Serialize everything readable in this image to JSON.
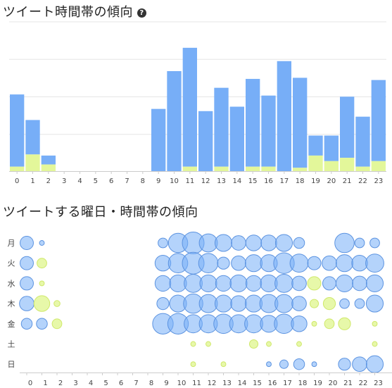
{
  "charts": {
    "hourly_title": "ツイート時間帯の傾向",
    "help_icon_glyph": "?",
    "weekday_title": "ツイートする曜日・時間帯の傾向"
  },
  "colors": {
    "blue": "#77aef7",
    "blue_stroke": "#5c93e0",
    "green": "#e3f79a",
    "green_stroke": "#cfe86a",
    "axis": "#cccccc",
    "grid": "#e6e6e6"
  },
  "chart_data": [
    {
      "type": "bar",
      "stacked": true,
      "categories": [
        "0",
        "1",
        "2",
        "3",
        "4",
        "5",
        "6",
        "7",
        "8",
        "9",
        "10",
        "11",
        "12",
        "13",
        "14",
        "15",
        "16",
        "17",
        "18",
        "19",
        "20",
        "21",
        "22",
        "23"
      ],
      "series": [
        {
          "values": [
            6.5,
            3.1,
            0.8,
            0,
            0,
            0,
            0,
            0,
            0,
            5.6,
            9.0,
            10.7,
            5.4,
            7.1,
            5.8,
            7.9,
            6.4,
            9.9,
            8.1,
            1.8,
            2.3,
            5.5,
            4.5,
            7.3
          ]
        },
        {
          "values": [
            0.4,
            1.5,
            0.6,
            0,
            0,
            0,
            0,
            0,
            0,
            0,
            0,
            0.4,
            0,
            0.4,
            0,
            0.4,
            0.4,
            0,
            0.3,
            1.4,
            0.9,
            1.2,
            0.4,
            0.9
          ]
        }
      ],
      "ylim": [
        0,
        13.5
      ],
      "grid": true
    },
    {
      "type": "scatter",
      "x_categories": [
        "0",
        "1",
        "2",
        "3",
        "4",
        "5",
        "6",
        "7",
        "8",
        "9",
        "10",
        "11",
        "12",
        "13",
        "14",
        "15",
        "16",
        "17",
        "18",
        "19",
        "20",
        "21",
        "22",
        "23"
      ],
      "y_categories": [
        "月",
        "火",
        "水",
        "木",
        "金",
        "土",
        "日"
      ],
      "size_scale_max": 18,
      "points": [
        {
          "x": 0,
          "y": "月",
          "size": 11,
          "color": "blue"
        },
        {
          "x": 1,
          "y": "月",
          "size": 4,
          "color": "blue"
        },
        {
          "x": 9,
          "y": "月",
          "size": 8,
          "color": "blue"
        },
        {
          "x": 10,
          "y": "月",
          "size": 16,
          "color": "blue"
        },
        {
          "x": 11,
          "y": "月",
          "size": 18,
          "color": "blue"
        },
        {
          "x": 12,
          "y": "月",
          "size": 15,
          "color": "blue"
        },
        {
          "x": 13,
          "y": "月",
          "size": 14,
          "color": "blue"
        },
        {
          "x": 14,
          "y": "月",
          "size": 12,
          "color": "blue"
        },
        {
          "x": 15,
          "y": "月",
          "size": 13,
          "color": "blue"
        },
        {
          "x": 16,
          "y": "月",
          "size": 13,
          "color": "blue"
        },
        {
          "x": 17,
          "y": "月",
          "size": 14,
          "color": "blue"
        },
        {
          "x": 18,
          "y": "月",
          "size": 9,
          "color": "blue"
        },
        {
          "x": 21,
          "y": "月",
          "size": 16,
          "color": "blue"
        },
        {
          "x": 22,
          "y": "月",
          "size": 8,
          "color": "blue"
        },
        {
          "x": 23,
          "y": "月",
          "size": 8,
          "color": "blue"
        },
        {
          "x": 0,
          "y": "火",
          "size": 11,
          "color": "blue"
        },
        {
          "x": 1,
          "y": "火",
          "size": 8,
          "color": "green"
        },
        {
          "x": 9,
          "y": "火",
          "size": 13,
          "color": "blue"
        },
        {
          "x": 10,
          "y": "火",
          "size": 16,
          "color": "blue"
        },
        {
          "x": 11,
          "y": "火",
          "size": 18,
          "color": "blue"
        },
        {
          "x": 12,
          "y": "火",
          "size": 16,
          "color": "blue"
        },
        {
          "x": 13,
          "y": "火",
          "size": 10,
          "color": "blue"
        },
        {
          "x": 14,
          "y": "火",
          "size": 12,
          "color": "blue"
        },
        {
          "x": 15,
          "y": "火",
          "size": 14,
          "color": "blue"
        },
        {
          "x": 16,
          "y": "火",
          "size": 14,
          "color": "blue"
        },
        {
          "x": 17,
          "y": "火",
          "size": 17,
          "color": "blue"
        },
        {
          "x": 18,
          "y": "火",
          "size": 15,
          "color": "blue"
        },
        {
          "x": 19,
          "y": "火",
          "size": 11,
          "color": "blue"
        },
        {
          "x": 20,
          "y": "火",
          "size": 12,
          "color": "blue"
        },
        {
          "x": 21,
          "y": "火",
          "size": 14,
          "color": "blue"
        },
        {
          "x": 22,
          "y": "火",
          "size": 13,
          "color": "blue"
        },
        {
          "x": 23,
          "y": "火",
          "size": 15,
          "color": "blue"
        },
        {
          "x": 0,
          "y": "水",
          "size": 11,
          "color": "blue"
        },
        {
          "x": 1,
          "y": "水",
          "size": 4,
          "color": "green"
        },
        {
          "x": 9,
          "y": "水",
          "size": 13,
          "color": "blue"
        },
        {
          "x": 10,
          "y": "水",
          "size": 14,
          "color": "blue"
        },
        {
          "x": 11,
          "y": "水",
          "size": 15,
          "color": "blue"
        },
        {
          "x": 12,
          "y": "水",
          "size": 14,
          "color": "blue"
        },
        {
          "x": 13,
          "y": "水",
          "size": 13,
          "color": "blue"
        },
        {
          "x": 14,
          "y": "水",
          "size": 14,
          "color": "blue"
        },
        {
          "x": 15,
          "y": "水",
          "size": 13,
          "color": "blue"
        },
        {
          "x": 16,
          "y": "水",
          "size": 14,
          "color": "blue"
        },
        {
          "x": 17,
          "y": "水",
          "size": 15,
          "color": "blue"
        },
        {
          "x": 18,
          "y": "水",
          "size": 12,
          "color": "blue"
        },
        {
          "x": 19,
          "y": "水",
          "size": 11,
          "color": "green"
        },
        {
          "x": 20,
          "y": "水",
          "size": 11,
          "color": "blue"
        },
        {
          "x": 21,
          "y": "水",
          "size": 14,
          "color": "blue"
        },
        {
          "x": 22,
          "y": "水",
          "size": 12,
          "color": "blue"
        },
        {
          "x": 23,
          "y": "水",
          "size": 14,
          "color": "blue"
        },
        {
          "x": 0,
          "y": "木",
          "size": 12,
          "color": "blue"
        },
        {
          "x": 1,
          "y": "木",
          "size": 13,
          "color": "green"
        },
        {
          "x": 2,
          "y": "木",
          "size": 5,
          "color": "green"
        },
        {
          "x": 9,
          "y": "木",
          "size": 10,
          "color": "blue"
        },
        {
          "x": 10,
          "y": "木",
          "size": 14,
          "color": "blue"
        },
        {
          "x": 11,
          "y": "木",
          "size": 16,
          "color": "blue"
        },
        {
          "x": 12,
          "y": "木",
          "size": 15,
          "color": "blue"
        },
        {
          "x": 13,
          "y": "木",
          "size": 14,
          "color": "blue"
        },
        {
          "x": 14,
          "y": "木",
          "size": 13,
          "color": "blue"
        },
        {
          "x": 15,
          "y": "木",
          "size": 14,
          "color": "blue"
        },
        {
          "x": 16,
          "y": "木",
          "size": 15,
          "color": "blue"
        },
        {
          "x": 17,
          "y": "木",
          "size": 15,
          "color": "blue"
        },
        {
          "x": 18,
          "y": "木",
          "size": 12,
          "color": "blue"
        },
        {
          "x": 19,
          "y": "木",
          "size": 7,
          "color": "green"
        },
        {
          "x": 20,
          "y": "木",
          "size": 10,
          "color": "green"
        },
        {
          "x": 21,
          "y": "木",
          "size": 8,
          "color": "blue"
        },
        {
          "x": 22,
          "y": "木",
          "size": 8,
          "color": "blue"
        },
        {
          "x": 23,
          "y": "木",
          "size": 14,
          "color": "blue"
        },
        {
          "x": 0,
          "y": "金",
          "size": 9,
          "color": "blue"
        },
        {
          "x": 1,
          "y": "金",
          "size": 9,
          "color": "blue"
        },
        {
          "x": 2,
          "y": "金",
          "size": 8,
          "color": "green"
        },
        {
          "x": 9,
          "y": "金",
          "size": 17,
          "color": "blue"
        },
        {
          "x": 10,
          "y": "金",
          "size": 17,
          "color": "blue"
        },
        {
          "x": 11,
          "y": "金",
          "size": 15,
          "color": "blue"
        },
        {
          "x": 12,
          "y": "金",
          "size": 15,
          "color": "blue"
        },
        {
          "x": 13,
          "y": "金",
          "size": 16,
          "color": "blue"
        },
        {
          "x": 14,
          "y": "金",
          "size": 15,
          "color": "blue"
        },
        {
          "x": 15,
          "y": "金",
          "size": 15,
          "color": "blue"
        },
        {
          "x": 16,
          "y": "金",
          "size": 14,
          "color": "blue"
        },
        {
          "x": 17,
          "y": "金",
          "size": 16,
          "color": "blue"
        },
        {
          "x": 18,
          "y": "金",
          "size": 13,
          "color": "blue"
        },
        {
          "x": 19,
          "y": "金",
          "size": 4,
          "color": "green"
        },
        {
          "x": 20,
          "y": "金",
          "size": 8,
          "color": "green"
        },
        {
          "x": 21,
          "y": "金",
          "size": 10,
          "color": "green"
        },
        {
          "x": 23,
          "y": "金",
          "size": 4,
          "color": "green"
        },
        {
          "x": 11,
          "y": "土",
          "size": 4,
          "color": "green"
        },
        {
          "x": 12,
          "y": "土",
          "size": 4,
          "color": "green"
        },
        {
          "x": 15,
          "y": "土",
          "size": 7,
          "color": "green"
        },
        {
          "x": 16,
          "y": "土",
          "size": 4,
          "color": "green"
        },
        {
          "x": 18,
          "y": "土",
          "size": 4,
          "color": "green"
        },
        {
          "x": 23,
          "y": "土",
          "size": 4,
          "color": "green"
        },
        {
          "x": 11,
          "y": "日",
          "size": 4,
          "color": "green"
        },
        {
          "x": 13,
          "y": "日",
          "size": 4,
          "color": "green"
        },
        {
          "x": 16,
          "y": "日",
          "size": 4,
          "color": "blue"
        },
        {
          "x": 17,
          "y": "日",
          "size": 7,
          "color": "blue"
        },
        {
          "x": 18,
          "y": "日",
          "size": 9,
          "color": "blue"
        },
        {
          "x": 19,
          "y": "日",
          "size": 4,
          "color": "blue"
        },
        {
          "x": 21,
          "y": "日",
          "size": 10,
          "color": "blue"
        },
        {
          "x": 22,
          "y": "日",
          "size": 12,
          "color": "blue"
        },
        {
          "x": 23,
          "y": "日",
          "size": 14,
          "color": "blue"
        }
      ]
    }
  ]
}
